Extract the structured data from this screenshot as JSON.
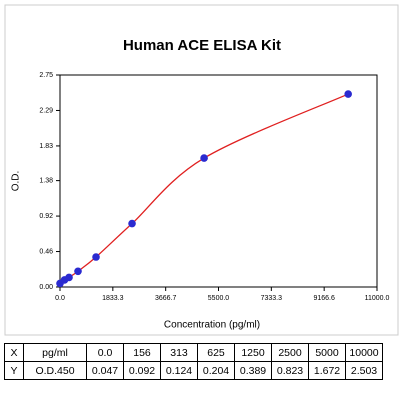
{
  "chart_data": {
    "type": "line",
    "title": "Human ACE ELISA Kit",
    "x_label": "Concentration (pg/ml)",
    "y_label": "O.D.",
    "x": [
      0,
      156,
      313,
      625,
      1250,
      2500,
      5000,
      10000
    ],
    "values": [
      0.047,
      0.092,
      0.124,
      0.204,
      0.389,
      0.823,
      1.672,
      2.503
    ],
    "color": "#e02020",
    "marker_color": "#2a2ad0",
    "xlim": [
      0,
      11000
    ],
    "ylim": [
      0,
      2.75
    ],
    "xticks": [
      {
        "value": 0,
        "label": "0.0"
      },
      1833.3,
      3666.7,
      {
        "value": 5500,
        "label": "5500.0"
      },
      7333.3,
      9166.6,
      {
        "value": 11000,
        "label": "11000.0"
      }
    ],
    "yticks": [
      {
        "value": 0,
        "label": "0.00"
      },
      0.46,
      0.92,
      1.38,
      1.83,
      2.29,
      2.75
    ]
  },
  "table": {
    "rows": [
      [
        "X",
        "pg/ml",
        "0.0",
        "156",
        "313",
        "625",
        "1250",
        "2500",
        "5000",
        "10000"
      ],
      [
        "Y",
        "O.D.450",
        "0.047",
        "0.092",
        "0.124",
        "0.204",
        "0.389",
        "0.823",
        "1.672",
        "2.503"
      ]
    ]
  }
}
